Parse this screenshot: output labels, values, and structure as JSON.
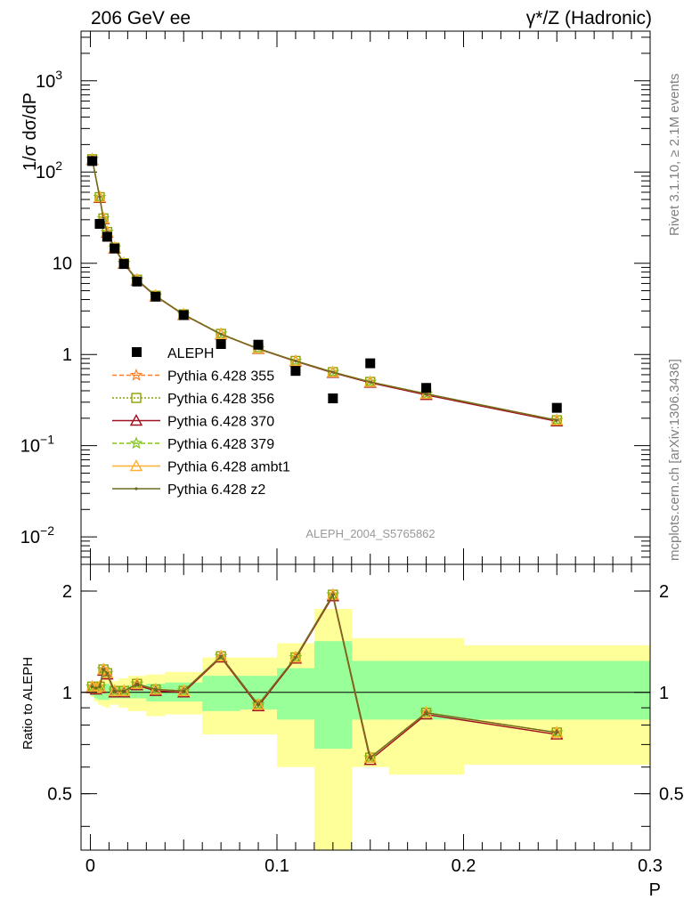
{
  "header": {
    "left_title": "206 GeV ee",
    "right_title": "γ*/Z (Hadronic)"
  },
  "side_labels": {
    "rivet": "Rivet 3.1.10, ≥ 2.1M events",
    "mcplots": "mcplots.cern.ch [arXiv:1306.3436]"
  },
  "analysis_tag": "ALEPH_2004_S5765862",
  "colors": {
    "data": "#000000",
    "band_inner": "#99ff99",
    "band_outer": "#ffff99",
    "p355": "#ff7f27",
    "p356": "#8ea000",
    "p370": "#a01020",
    "p379": "#80c020",
    "ambt1": "#ffb030",
    "z2": "#6b6b20"
  },
  "chart_data": [
    {
      "type": "line",
      "panel": "main",
      "ylabel": "1/σ dσ/dP",
      "yscale": "log",
      "ylim": [
        0.005,
        3500
      ],
      "xlim": [
        -0.005,
        0.3
      ],
      "y_ticks": [
        {
          "value": 1000,
          "label": "10",
          "sup": "3"
        },
        {
          "value": 100,
          "label": "10",
          "sup": "2"
        },
        {
          "value": 10,
          "label": "10",
          "sup": ""
        },
        {
          "value": 1,
          "label": "1",
          "sup": ""
        },
        {
          "value": 0.1,
          "label": "10",
          "sup": "−1"
        },
        {
          "value": 0.01,
          "label": "10",
          "sup": "−2"
        }
      ],
      "data_series": {
        "name": "ALEPH",
        "x": [
          0.001,
          0.005,
          0.009,
          0.013,
          0.018,
          0.025,
          0.035,
          0.05,
          0.07,
          0.09,
          0.11,
          0.13,
          0.15,
          0.18,
          0.25
        ],
        "y": [
          132,
          27,
          19.5,
          14.5,
          9.8,
          6.3,
          4.3,
          2.7,
          1.3,
          1.28,
          0.66,
          0.33,
          0.8,
          0.43,
          0.26
        ]
      },
      "series": [
        {
          "name": "Pythia 6.428 355",
          "color_key": "p355",
          "line": "dashed",
          "marker": "star",
          "x": [
            0.001,
            0.005,
            0.007,
            0.009,
            0.013,
            0.018,
            0.025,
            0.035,
            0.05,
            0.07,
            0.09,
            0.11,
            0.13,
            0.15,
            0.18,
            0.25
          ],
          "y": [
            138,
            53,
            31,
            22,
            14.8,
            10.0,
            6.6,
            4.4,
            2.75,
            1.68,
            1.16,
            0.85,
            0.64,
            0.5,
            0.37,
            0.19
          ]
        },
        {
          "name": "Pythia 6.428 356",
          "color_key": "p356",
          "line": "dotted",
          "marker": "square",
          "x": [
            0.001,
            0.005,
            0.007,
            0.009,
            0.013,
            0.018,
            0.025,
            0.035,
            0.05,
            0.07,
            0.09,
            0.11,
            0.13,
            0.15,
            0.18,
            0.25
          ],
          "y": [
            138,
            53,
            31,
            22,
            14.8,
            10.0,
            6.6,
            4.4,
            2.75,
            1.68,
            1.16,
            0.85,
            0.64,
            0.5,
            0.37,
            0.19
          ]
        },
        {
          "name": "Pythia 6.428 370",
          "color_key": "p370",
          "line": "solid",
          "marker": "triangle",
          "x": [
            0.001,
            0.005,
            0.007,
            0.009,
            0.013,
            0.018,
            0.025,
            0.035,
            0.05,
            0.07,
            0.09,
            0.11,
            0.13,
            0.15,
            0.18,
            0.25
          ],
          "y": [
            136,
            52,
            30.5,
            21.7,
            14.6,
            9.9,
            6.5,
            4.35,
            2.72,
            1.66,
            1.15,
            0.84,
            0.63,
            0.49,
            0.36,
            0.185
          ]
        },
        {
          "name": "Pythia 6.428 379",
          "color_key": "p379",
          "line": "dashed",
          "marker": "star",
          "x": [
            0.001,
            0.005,
            0.007,
            0.009,
            0.013,
            0.018,
            0.025,
            0.035,
            0.05,
            0.07,
            0.09,
            0.11,
            0.13,
            0.15,
            0.18,
            0.25
          ],
          "y": [
            138,
            53,
            31,
            22,
            14.8,
            10.0,
            6.6,
            4.4,
            2.75,
            1.68,
            1.16,
            0.85,
            0.64,
            0.5,
            0.37,
            0.19
          ]
        },
        {
          "name": "Pythia 6.428 ambt1",
          "color_key": "ambt1",
          "line": "solid",
          "marker": "triangle",
          "x": [
            0.001,
            0.005,
            0.007,
            0.009,
            0.013,
            0.018,
            0.025,
            0.035,
            0.05,
            0.07,
            0.09,
            0.11,
            0.13,
            0.15,
            0.18,
            0.25
          ],
          "y": [
            137,
            53,
            31,
            22,
            14.8,
            10.0,
            6.6,
            4.4,
            2.74,
            1.67,
            1.16,
            0.85,
            0.64,
            0.5,
            0.37,
            0.19
          ]
        },
        {
          "name": "Pythia 6.428 z2",
          "color_key": "z2",
          "line": "solid",
          "marker": "dot",
          "x": [
            0.001,
            0.005,
            0.007,
            0.009,
            0.013,
            0.018,
            0.025,
            0.035,
            0.05,
            0.07,
            0.09,
            0.11,
            0.13,
            0.15,
            0.18,
            0.25
          ],
          "y": [
            137,
            53,
            31,
            22,
            14.8,
            10.0,
            6.6,
            4.4,
            2.74,
            1.67,
            1.16,
            0.85,
            0.64,
            0.5,
            0.37,
            0.19
          ]
        }
      ]
    },
    {
      "type": "line",
      "panel": "ratio",
      "ylabel": "Ratio to ALEPH",
      "xlabel": "P",
      "yscale": "log",
      "ylim": [
        0.34,
        2.4
      ],
      "xlim": [
        -0.005,
        0.3
      ],
      "y_ticks": [
        {
          "value": 2,
          "label": "2"
        },
        {
          "value": 1,
          "label": "1"
        },
        {
          "value": 0.5,
          "label": "0.5"
        }
      ],
      "x_ticks": [
        {
          "value": 0,
          "label": "0"
        },
        {
          "value": 0.1,
          "label": "0.1"
        },
        {
          "value": 0.2,
          "label": "0.2"
        },
        {
          "value": 0.3,
          "label": "0.3"
        }
      ],
      "uncertainty_bins": [
        {
          "x0": 0.0,
          "x1": 0.002,
          "in_lo": 0.98,
          "in_hi": 1.02,
          "out_lo": 0.97,
          "out_hi": 1.03
        },
        {
          "x0": 0.002,
          "x1": 0.004,
          "in_lo": 0.96,
          "in_hi": 1.04,
          "out_lo": 0.94,
          "out_hi": 1.06
        },
        {
          "x0": 0.004,
          "x1": 0.006,
          "in_lo": 0.95,
          "in_hi": 1.05,
          "out_lo": 0.92,
          "out_hi": 1.08
        },
        {
          "x0": 0.006,
          "x1": 0.008,
          "in_lo": 0.95,
          "in_hi": 1.05,
          "out_lo": 0.91,
          "out_hi": 1.09
        },
        {
          "x0": 0.008,
          "x1": 0.01,
          "in_lo": 0.95,
          "in_hi": 1.06,
          "out_lo": 0.9,
          "out_hi": 1.11
        },
        {
          "x0": 0.01,
          "x1": 0.015,
          "in_lo": 0.96,
          "in_hi": 1.04,
          "out_lo": 0.92,
          "out_hi": 1.08
        },
        {
          "x0": 0.015,
          "x1": 0.02,
          "in_lo": 0.96,
          "in_hi": 1.04,
          "out_lo": 0.9,
          "out_hi": 1.1
        },
        {
          "x0": 0.02,
          "x1": 0.03,
          "in_lo": 0.96,
          "in_hi": 1.05,
          "out_lo": 0.88,
          "out_hi": 1.12
        },
        {
          "x0": 0.03,
          "x1": 0.04,
          "in_lo": 0.94,
          "in_hi": 1.06,
          "out_lo": 0.85,
          "out_hi": 1.13
        },
        {
          "x0": 0.04,
          "x1": 0.06,
          "in_lo": 0.94,
          "in_hi": 1.07,
          "out_lo": 0.86,
          "out_hi": 1.15
        },
        {
          "x0": 0.06,
          "x1": 0.08,
          "in_lo": 0.88,
          "in_hi": 1.12,
          "out_lo": 0.75,
          "out_hi": 1.27
        },
        {
          "x0": 0.08,
          "x1": 0.1,
          "in_lo": 0.89,
          "in_hi": 1.12,
          "out_lo": 0.75,
          "out_hi": 1.27
        },
        {
          "x0": 0.1,
          "x1": 0.12,
          "in_lo": 0.83,
          "in_hi": 1.18,
          "out_lo": 0.6,
          "out_hi": 1.4
        },
        {
          "x0": 0.12,
          "x1": 0.14,
          "in_lo": 0.68,
          "in_hi": 1.42,
          "out_lo": 0.3,
          "out_hi": 1.77
        },
        {
          "x0": 0.14,
          "x1": 0.16,
          "in_lo": 0.83,
          "in_hi": 1.24,
          "out_lo": 0.6,
          "out_hi": 1.45
        },
        {
          "x0": 0.16,
          "x1": 0.2,
          "in_lo": 0.83,
          "in_hi": 1.24,
          "out_lo": 0.57,
          "out_hi": 1.45
        },
        {
          "x0": 0.2,
          "x1": 0.3,
          "in_lo": 0.83,
          "in_hi": 1.24,
          "out_lo": 0.61,
          "out_hi": 1.38
        }
      ],
      "series": [
        {
          "name": "Pythia 6.428 355",
          "color_key": "p355",
          "line": "dashed",
          "marker": "star",
          "x": [
            0.001,
            0.003,
            0.005,
            0.007,
            0.009,
            0.013,
            0.018,
            0.025,
            0.035,
            0.05,
            0.07,
            0.09,
            0.11,
            0.13,
            0.15,
            0.18,
            0.25
          ],
          "y": [
            1.04,
            1.03,
            1.04,
            1.17,
            1.14,
            1.01,
            1.01,
            1.06,
            1.02,
            1.01,
            1.28,
            0.92,
            1.27,
            1.95,
            0.64,
            0.87,
            0.76
          ]
        },
        {
          "name": "Pythia 6.428 356",
          "color_key": "p356",
          "line": "dotted",
          "marker": "square",
          "x": [
            0.001,
            0.003,
            0.005,
            0.007,
            0.009,
            0.013,
            0.018,
            0.025,
            0.035,
            0.05,
            0.07,
            0.09,
            0.11,
            0.13,
            0.15,
            0.18,
            0.25
          ],
          "y": [
            1.04,
            1.03,
            1.04,
            1.17,
            1.14,
            1.01,
            1.01,
            1.06,
            1.02,
            1.01,
            1.28,
            0.92,
            1.27,
            1.95,
            0.64,
            0.87,
            0.76
          ]
        },
        {
          "name": "Pythia 6.428 370",
          "color_key": "p370",
          "line": "solid",
          "marker": "triangle",
          "x": [
            0.001,
            0.003,
            0.005,
            0.007,
            0.009,
            0.013,
            0.018,
            0.025,
            0.035,
            0.05,
            0.07,
            0.09,
            0.11,
            0.13,
            0.15,
            0.18,
            0.25
          ],
          "y": [
            1.03,
            1.02,
            1.03,
            1.16,
            1.13,
            1.0,
            1.0,
            1.05,
            1.01,
            1.0,
            1.27,
            0.91,
            1.26,
            1.93,
            0.63,
            0.86,
            0.75
          ]
        },
        {
          "name": "Pythia 6.428 379",
          "color_key": "p379",
          "line": "dashed",
          "marker": "star",
          "x": [
            0.001,
            0.003,
            0.005,
            0.007,
            0.009,
            0.013,
            0.018,
            0.025,
            0.035,
            0.05,
            0.07,
            0.09,
            0.11,
            0.13,
            0.15,
            0.18,
            0.25
          ],
          "y": [
            1.04,
            1.03,
            1.04,
            1.17,
            1.14,
            1.01,
            1.01,
            1.06,
            1.02,
            1.01,
            1.28,
            0.92,
            1.27,
            1.95,
            0.64,
            0.87,
            0.76
          ]
        },
        {
          "name": "Pythia 6.428 ambt1",
          "color_key": "ambt1",
          "line": "solid",
          "marker": "triangle",
          "x": [
            0.001,
            0.003,
            0.005,
            0.007,
            0.009,
            0.013,
            0.018,
            0.025,
            0.035,
            0.05,
            0.07,
            0.09,
            0.11,
            0.13,
            0.15,
            0.18,
            0.25
          ],
          "y": [
            1.04,
            1.03,
            1.04,
            1.17,
            1.14,
            1.01,
            1.01,
            1.06,
            1.02,
            1.01,
            1.28,
            0.92,
            1.27,
            1.95,
            0.64,
            0.87,
            0.76
          ]
        },
        {
          "name": "Pythia 6.428 z2",
          "color_key": "z2",
          "line": "solid",
          "marker": "dot",
          "x": [
            0.001,
            0.003,
            0.005,
            0.007,
            0.009,
            0.013,
            0.018,
            0.025,
            0.035,
            0.05,
            0.07,
            0.09,
            0.11,
            0.13,
            0.15,
            0.18,
            0.25
          ],
          "y": [
            1.04,
            1.03,
            1.04,
            1.17,
            1.14,
            1.01,
            1.01,
            1.06,
            1.02,
            1.01,
            1.28,
            0.92,
            1.27,
            1.95,
            0.64,
            0.87,
            0.76
          ]
        }
      ]
    }
  ]
}
